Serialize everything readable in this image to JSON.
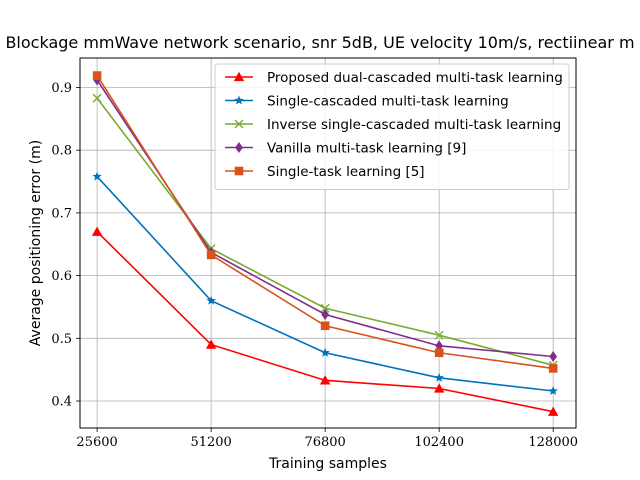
{
  "chart_data": {
    "type": "line",
    "title": "Blockage mmWave network scenario, snr 5dB, UE velocity 10m/s, rectiinear m",
    "xlabel": "Training samples",
    "ylabel": "Average positioning error (m)",
    "x": [
      25600,
      51200,
      76800,
      102400,
      128000
    ],
    "x_tick_labels": [
      "25600",
      "51200",
      "76800",
      "102400",
      "128000"
    ],
    "y_ticks": [
      0.4,
      0.5,
      0.6,
      0.7,
      0.8,
      0.9
    ],
    "y_tick_labels": [
      "0.4",
      "0.5",
      "0.6",
      "0.7",
      "0.8",
      "0.9"
    ],
    "xlim": [
      21760,
      133120
    ],
    "ylim": [
      0.357,
      0.947
    ],
    "grid": true,
    "legend_position": "top-right",
    "series": [
      {
        "name": "Proposed dual-cascaded multi-task learning",
        "color": "#ff0000",
        "marker": "triangle",
        "values": [
          0.67,
          0.49,
          0.433,
          0.42,
          0.383
        ]
      },
      {
        "name": "Single-cascaded multi-task learning",
        "color": "#0072bd",
        "marker": "star",
        "values": [
          0.758,
          0.56,
          0.477,
          0.437,
          0.416
        ]
      },
      {
        "name": "Inverse single-cascaded multi-task learning",
        "color": "#77ac30",
        "marker": "x",
        "values": [
          0.883,
          0.643,
          0.548,
          0.505,
          0.457
        ]
      },
      {
        "name": "Vanilla multi-task learning [9]",
        "color": "#7e2f8e",
        "marker": "diamond",
        "values": [
          0.912,
          0.637,
          0.538,
          0.488,
          0.471
        ]
      },
      {
        "name": "Single-task learning [5]",
        "color": "#d95319",
        "marker": "square",
        "values": [
          0.919,
          0.633,
          0.52,
          0.477,
          0.452
        ]
      }
    ]
  }
}
